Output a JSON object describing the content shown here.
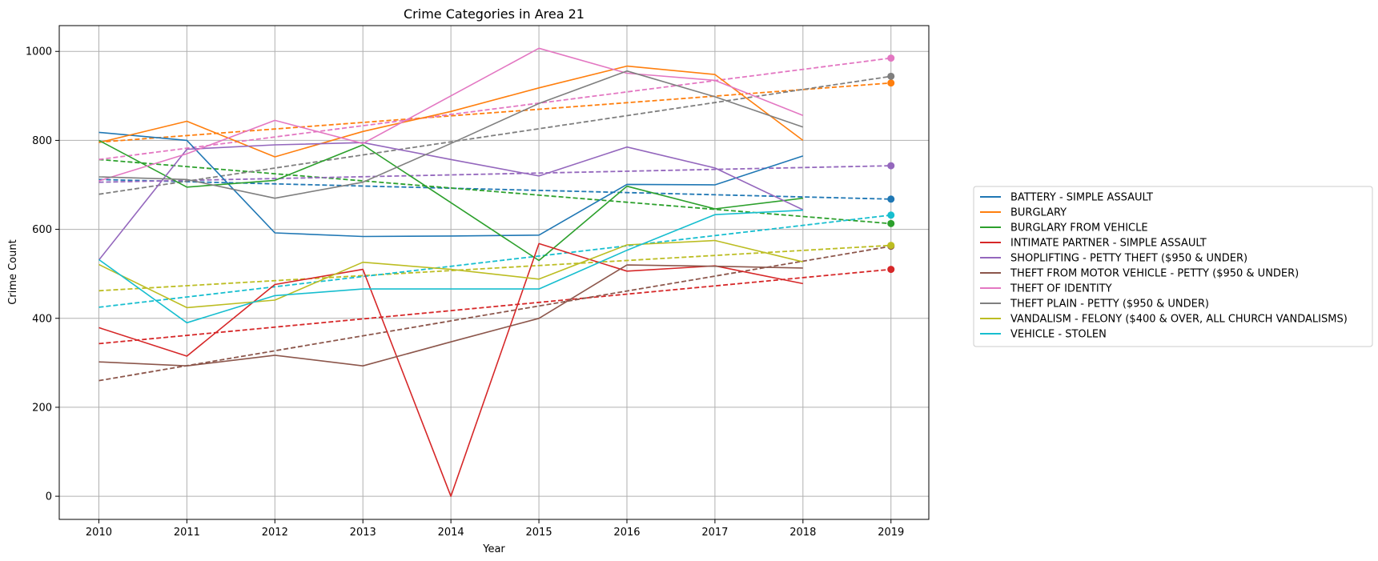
{
  "chart_data": {
    "type": "line",
    "title": "Crime Categories in Area 21",
    "xlabel": "Year",
    "ylabel": "Crime Count",
    "xlim": [
      2009.55,
      2019.43
    ],
    "ylim": [
      -52,
      1058
    ],
    "xticks": [
      2010,
      2011,
      2012,
      2013,
      2014,
      2015,
      2016,
      2017,
      2018,
      2019
    ],
    "yticks": [
      0,
      200,
      400,
      600,
      800,
      1000
    ],
    "grid": true,
    "legend_position": "right",
    "series": [
      {
        "name": "BATTERY - SIMPLE ASSAULT",
        "color": "#1f77b4",
        "x": [
          2010,
          2011,
          2012,
          2013,
          2014,
          2015,
          2016,
          2017,
          2018
        ],
        "y": [
          818,
          800,
          592,
          584,
          585,
          587,
          701,
          700,
          765
        ],
        "trend": [
          [
            2010,
            712
          ],
          [
            2019,
            668
          ]
        ]
      },
      {
        "name": "BURGLARY",
        "color": "#ff7f0e",
        "x": [
          2010,
          2011,
          2012,
          2013,
          2014,
          2015,
          2016,
          2017,
          2018
        ],
        "y": [
          795,
          843,
          763,
          820,
          865,
          918,
          967,
          948,
          800
        ],
        "trend": [
          [
            2010,
            796
          ],
          [
            2019,
            929
          ]
        ]
      },
      {
        "name": "BURGLARY FROM VEHICLE",
        "color": "#2ca02c",
        "x": [
          2010,
          2011,
          2012,
          2013,
          2014,
          2015,
          2016,
          2017,
          2018
        ],
        "y": [
          800,
          695,
          710,
          790,
          660,
          530,
          697,
          646,
          670
        ],
        "trend": [
          [
            2010,
            757
          ],
          [
            2019,
            613
          ]
        ]
      },
      {
        "name": "INTIMATE PARTNER - SIMPLE ASSAULT",
        "color": "#d62728",
        "x": [
          2010,
          2011,
          2012,
          2013,
          2014,
          2015,
          2016,
          2017,
          2018
        ],
        "y": [
          379,
          315,
          476,
          510,
          0,
          568,
          506,
          518,
          478
        ],
        "trend": [
          [
            2010,
            343
          ],
          [
            2019,
            510
          ]
        ]
      },
      {
        "name": "SHOPLIFTING - PETTY THEFT ($950 & UNDER)",
        "color": "#9467bd",
        "x": [
          2010,
          2011,
          2012,
          2013,
          2014,
          2015,
          2016,
          2017,
          2018
        ],
        "y": [
          531,
          780,
          790,
          795,
          757,
          720,
          785,
          738,
          644
        ],
        "trend": [
          [
            2010,
            706
          ],
          [
            2019,
            743
          ]
        ]
      },
      {
        "name": "THEFT FROM MOTOR VEHICLE - PETTY ($950 & UNDER)",
        "color": "#8c564b",
        "x": [
          2010,
          2011,
          2012,
          2013,
          2014,
          2015,
          2016,
          2017,
          2018
        ],
        "y": [
          302,
          293,
          317,
          293,
          347,
          400,
          520,
          517,
          513
        ],
        "trend": [
          [
            2010,
            260
          ],
          [
            2019,
            562
          ]
        ]
      },
      {
        "name": "THEFT OF IDENTITY",
        "color": "#e377c2",
        "x": [
          2010,
          2011,
          2012,
          2013,
          2014,
          2015,
          2016,
          2017,
          2018
        ],
        "y": [
          709,
          770,
          845,
          793,
          900,
          1007,
          951,
          935,
          856
        ],
        "trend": [
          [
            2010,
            757
          ],
          [
            2019,
            985
          ]
        ]
      },
      {
        "name": "THEFT PLAIN - PETTY ($950 & UNDER)",
        "color": "#7f7f7f",
        "x": [
          2010,
          2011,
          2012,
          2013,
          2014,
          2015,
          2016,
          2017,
          2018
        ],
        "y": [
          718,
          712,
          670,
          706,
          793,
          883,
          956,
          898,
          830
        ],
        "trend": [
          [
            2010,
            679
          ],
          [
            2019,
            944
          ]
        ]
      },
      {
        "name": "VANDALISM - FELONY ($400 & OVER, ALL CHURCH VANDALISMS)",
        "color": "#bcbd22",
        "x": [
          2010,
          2011,
          2012,
          2013,
          2014,
          2015,
          2016,
          2017,
          2018
        ],
        "y": [
          521,
          424,
          441,
          526,
          510,
          488,
          565,
          575,
          527
        ],
        "trend": [
          [
            2010,
            462
          ],
          [
            2019,
            564
          ]
        ]
      },
      {
        "name": "VEHICLE - STOLEN",
        "color": "#17becf",
        "x": [
          2010,
          2011,
          2012,
          2013,
          2014,
          2015,
          2016,
          2017,
          2018
        ],
        "y": [
          532,
          390,
          451,
          466,
          466,
          466,
          553,
          633,
          643
        ],
        "trend": [
          [
            2010,
            425
          ],
          [
            2019,
            632
          ]
        ]
      }
    ]
  }
}
